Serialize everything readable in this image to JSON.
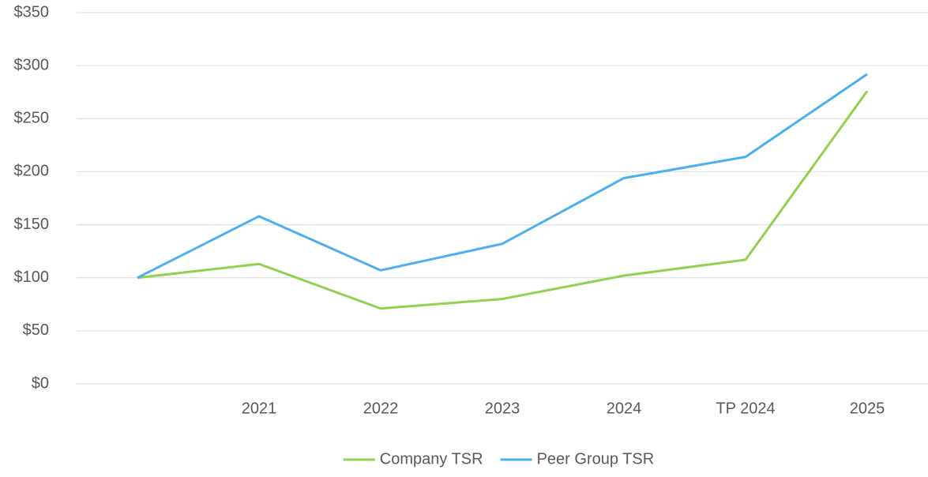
{
  "chart_data": {
    "type": "line",
    "categories": [
      null,
      "2021",
      "2022",
      "2023",
      "2024",
      "TP 2024",
      "2025"
    ],
    "series": [
      {
        "name": "Company TSR",
        "color": "#92d050",
        "values": [
          100,
          113,
          71,
          80,
          102,
          117,
          276
        ]
      },
      {
        "name": "Peer Group TSR",
        "color": "#4aaef0",
        "values": [
          100,
          158,
          107,
          132,
          194,
          214,
          292
        ]
      }
    ],
    "ylim": [
      0,
      350
    ],
    "yticks": [
      {
        "value": 0,
        "label": "$0"
      },
      {
        "value": 50,
        "label": "$50"
      },
      {
        "value": 100,
        "label": "$100"
      },
      {
        "value": 150,
        "label": "$150"
      },
      {
        "value": 200,
        "label": "$200"
      },
      {
        "value": 250,
        "label": "$250"
      },
      {
        "value": 300,
        "label": "$300"
      },
      {
        "value": 350,
        "label": "$350"
      }
    ],
    "grid": true,
    "legend": "bottom"
  }
}
